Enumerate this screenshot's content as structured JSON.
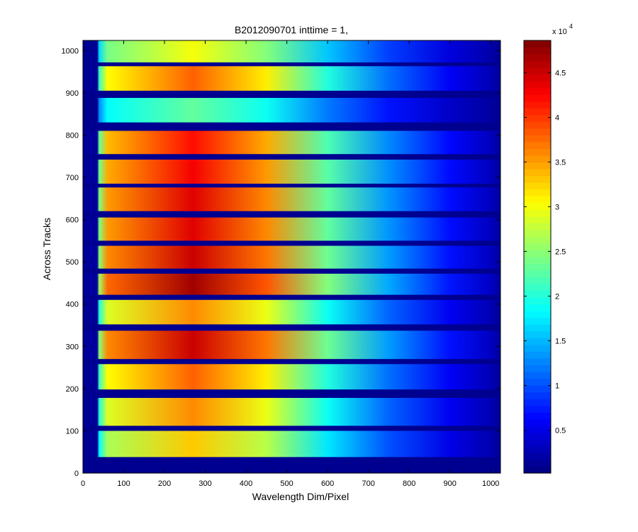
{
  "chart_data": {
    "type": "heatmap",
    "title": "B2012090701 inttime = 1,",
    "xlabel": "Wavelength Dim/Pixel",
    "ylabel": "Across Tracks",
    "xlim": [
      0,
      1024
    ],
    "ylim": [
      0,
      1024
    ],
    "x_ticks": [
      0,
      100,
      200,
      300,
      400,
      500,
      600,
      700,
      800,
      900,
      1000
    ],
    "y_ticks": [
      0,
      100,
      200,
      300,
      400,
      500,
      600,
      700,
      800,
      900,
      1000
    ],
    "colormap": "jet",
    "colorbar": {
      "range": [
        200,
        48600
      ],
      "ticks": [
        5000,
        10000,
        15000,
        20000,
        25000,
        30000,
        35000,
        40000,
        45000
      ],
      "tick_labels": [
        "0.5",
        "1",
        "1.5",
        "2",
        "2.5",
        "3",
        "3.5",
        "4",
        "4.5"
      ],
      "exponent_label": "x 10",
      "exponent": "4"
    },
    "bands": [
      {
        "y_start": 38,
        "y_end": 100,
        "peak": 33000
      },
      {
        "y_start": 112,
        "y_end": 178,
        "peak": 36000
      },
      {
        "y_start": 198,
        "y_end": 258,
        "peak": 38000
      },
      {
        "y_start": 270,
        "y_end": 337,
        "peak": 45000
      },
      {
        "y_start": 352,
        "y_end": 410,
        "peak": 36000
      },
      {
        "y_start": 422,
        "y_end": 472,
        "peak": 47000
      },
      {
        "y_start": 484,
        "y_end": 538,
        "peak": 45000
      },
      {
        "y_start": 550,
        "y_end": 605,
        "peak": 44000
      },
      {
        "y_start": 620,
        "y_end": 676,
        "peak": 44000
      },
      {
        "y_start": 685,
        "y_end": 742,
        "peak": 43000
      },
      {
        "y_start": 755,
        "y_end": 810,
        "peak": 42000
      },
      {
        "y_start": 830,
        "y_end": 888,
        "peak": 23000
      },
      {
        "y_start": 905,
        "y_end": 963,
        "peak": 38000
      },
      {
        "y_start": 972,
        "y_end": 1024,
        "peak": 30000
      }
    ],
    "band_x_start": 40,
    "band_peak_x": 270,
    "signal_end_x": 1000,
    "grid": false
  }
}
